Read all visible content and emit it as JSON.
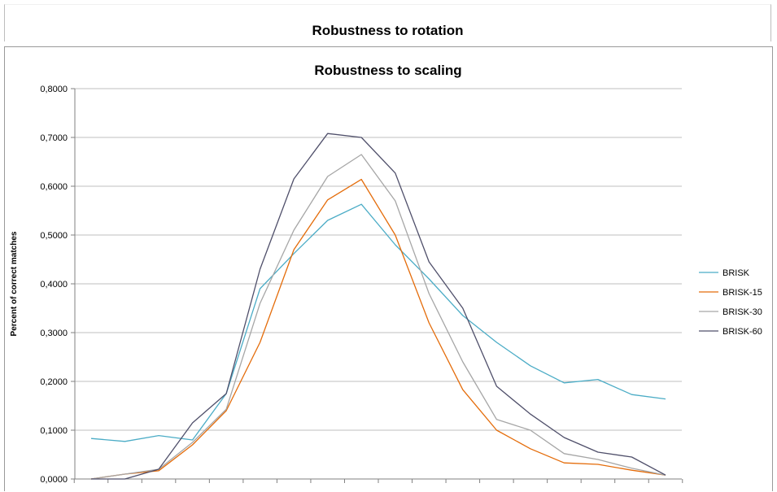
{
  "top_chart": {
    "title": "Robustness to rotation"
  },
  "chart_data": {
    "type": "line",
    "title": "Robustness to scaling",
    "xlabel": "",
    "ylabel": "Percent of correct matches",
    "ylim": [
      0,
      0.8
    ],
    "yticks": [
      "0,0000",
      "0,1000",
      "0,2000",
      "0,3000",
      "0,4000",
      "0,5000",
      "0,6000",
      "0,7000",
      "0,8000"
    ],
    "x_count": 18,
    "grid": true,
    "legend_position": "right",
    "series": [
      {
        "name": "BRISK",
        "color": "#4bacc6",
        "values": [
          0.083,
          0.077,
          0.089,
          0.08,
          0.175,
          0.39,
          0.462,
          0.53,
          0.563,
          0.48,
          0.41,
          0.335,
          0.28,
          0.232,
          0.197,
          0.204,
          0.173,
          0.164
        ]
      },
      {
        "name": "BRISK-15",
        "color": "#e46c0a",
        "values": [
          0.0,
          0.01,
          0.017,
          0.07,
          0.14,
          0.28,
          0.47,
          0.572,
          0.614,
          0.5,
          0.32,
          0.183,
          0.1,
          0.062,
          0.033,
          0.03,
          0.018,
          0.008
        ]
      },
      {
        "name": "BRISK-30",
        "color": "#a6a6a6",
        "values": [
          0.0,
          0.01,
          0.02,
          0.075,
          0.143,
          0.36,
          0.51,
          0.62,
          0.665,
          0.57,
          0.38,
          0.24,
          0.122,
          0.1,
          0.052,
          0.04,
          0.022,
          0.008
        ]
      },
      {
        "name": "BRISK-60",
        "color": "#4f4f6a",
        "values": [
          0.0,
          0.0,
          0.02,
          0.115,
          0.175,
          0.43,
          0.615,
          0.708,
          0.7,
          0.627,
          0.445,
          0.35,
          0.19,
          0.133,
          0.085,
          0.055,
          0.045,
          0.008
        ]
      }
    ]
  }
}
